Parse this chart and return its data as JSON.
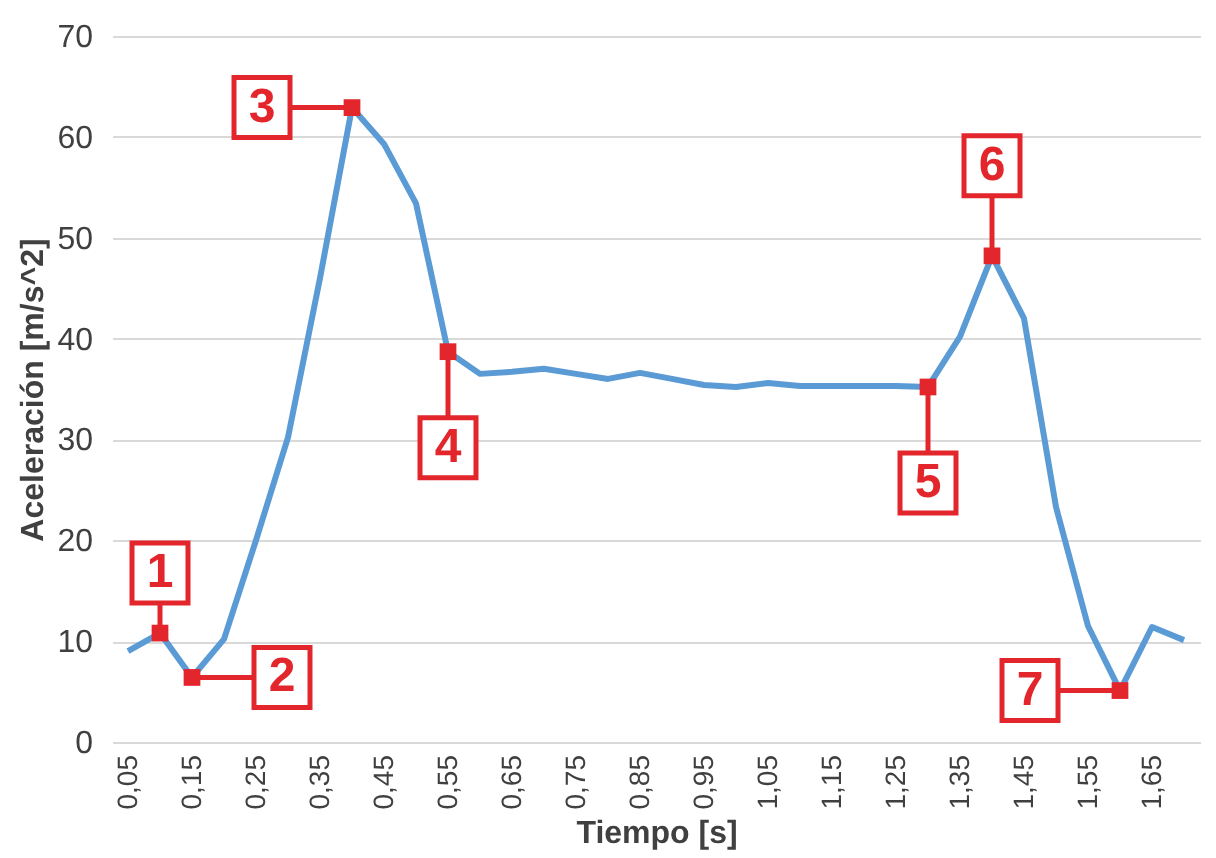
{
  "chart_data": {
    "type": "line",
    "xlabel": "Tiempo [s]",
    "ylabel": "Aceleración [m/s^2]",
    "x": [
      0.05,
      0.1,
      0.15,
      0.2,
      0.25,
      0.3,
      0.35,
      0.4,
      0.45,
      0.5,
      0.55,
      0.6,
      0.65,
      0.7,
      0.75,
      0.8,
      0.85,
      0.9,
      0.95,
      1.0,
      1.05,
      1.1,
      1.15,
      1.2,
      1.25,
      1.3,
      1.35,
      1.4,
      1.45,
      1.5,
      1.55,
      1.6,
      1.65,
      1.7
    ],
    "series": [
      {
        "color": "#5b9bd5",
        "values": [
          9.0,
          10.8,
          6.4,
          10.2,
          20,
          30.2,
          46,
          62.9,
          59.3,
          53.4,
          38.7,
          36.5,
          36.7,
          37.0,
          36.5,
          36.0,
          36.6,
          36.0,
          35.4,
          35.2,
          35.6,
          35.3,
          35.3,
          35.3,
          35.3,
          35.2,
          40.2,
          48.2,
          42.0,
          23.3,
          11.5,
          5.1,
          11.4,
          10.1
        ]
      }
    ],
    "xlim": [
      0.025,
      1.725
    ],
    "xticks": [
      {
        "value": 0.05,
        "label": "0,05"
      },
      {
        "value": 0.15,
        "label": "0,15"
      },
      {
        "value": 0.25,
        "label": "0,25"
      },
      {
        "value": 0.35,
        "label": "0,35"
      },
      {
        "value": 0.45,
        "label": "0,45"
      },
      {
        "value": 0.55,
        "label": "0,55"
      },
      {
        "value": 0.65,
        "label": "0,65"
      },
      {
        "value": 0.75,
        "label": "0,75"
      },
      {
        "value": 0.85,
        "label": "0,85"
      },
      {
        "value": 0.95,
        "label": "0,95"
      },
      {
        "value": 1.05,
        "label": "1,05"
      },
      {
        "value": 1.15,
        "label": "1,15"
      },
      {
        "value": 1.25,
        "label": "1,25"
      },
      {
        "value": 1.35,
        "label": "1,35"
      },
      {
        "value": 1.45,
        "label": "1,45"
      },
      {
        "value": 1.55,
        "label": "1,55"
      },
      {
        "value": 1.65,
        "label": "1,65"
      }
    ],
    "ylim": [
      0,
      70
    ],
    "yticks": [
      0,
      10,
      20,
      30,
      40,
      50,
      60,
      70
    ],
    "grid": "y",
    "marker": "none",
    "line_style": "solid",
    "annotations": [
      {
        "text": "1",
        "x": 0.1,
        "y": 10.8
      },
      {
        "text": "2",
        "x": 0.15,
        "y": 6.4
      },
      {
        "text": "3",
        "x": 0.4,
        "y": 62.9
      },
      {
        "text": "4",
        "x": 0.55,
        "y": 38.7
      },
      {
        "text": "5",
        "x": 1.3,
        "y": 35.2
      },
      {
        "text": "6",
        "x": 1.4,
        "y": 48.2
      },
      {
        "text": "7",
        "x": 1.6,
        "y": 5.1
      }
    ]
  }
}
